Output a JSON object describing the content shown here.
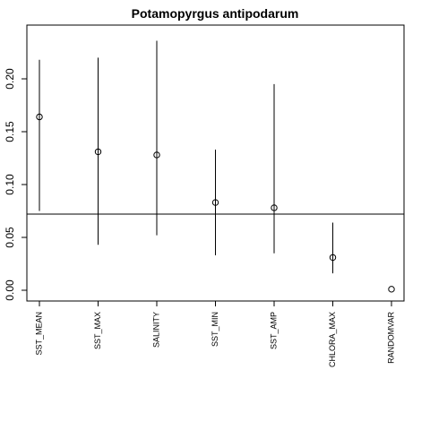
{
  "chart_data": {
    "type": "scatter",
    "title": "Potamopyrgus antipodarum",
    "xlabel": "",
    "ylabel": "",
    "categories": [
      "SST_MEAN",
      "SST_MAX",
      "SALINITY",
      "SST_MIN",
      "SST_AMP",
      "CHLORA_MAX",
      "RANDOMVAR"
    ],
    "values": [
      0.164,
      0.131,
      0.128,
      0.083,
      0.078,
      0.031,
      0.001
    ],
    "lower": [
      0.075,
      0.043,
      0.052,
      0.033,
      0.035,
      0.016,
      0.001
    ],
    "upper": [
      0.218,
      0.22,
      0.236,
      0.133,
      0.195,
      0.064,
      0.001
    ],
    "reference_line": 0.072,
    "ylim": [
      0,
      0.24
    ],
    "yticks": [
      {
        "value": 0.0,
        "label": "0.00"
      },
      {
        "value": 0.05,
        "label": "0.05"
      },
      {
        "value": 0.1,
        "label": "0.10"
      },
      {
        "value": 0.15,
        "label": "0.15"
      },
      {
        "value": 0.2,
        "label": "0.20"
      }
    ],
    "grid": false,
    "legend": "none"
  }
}
